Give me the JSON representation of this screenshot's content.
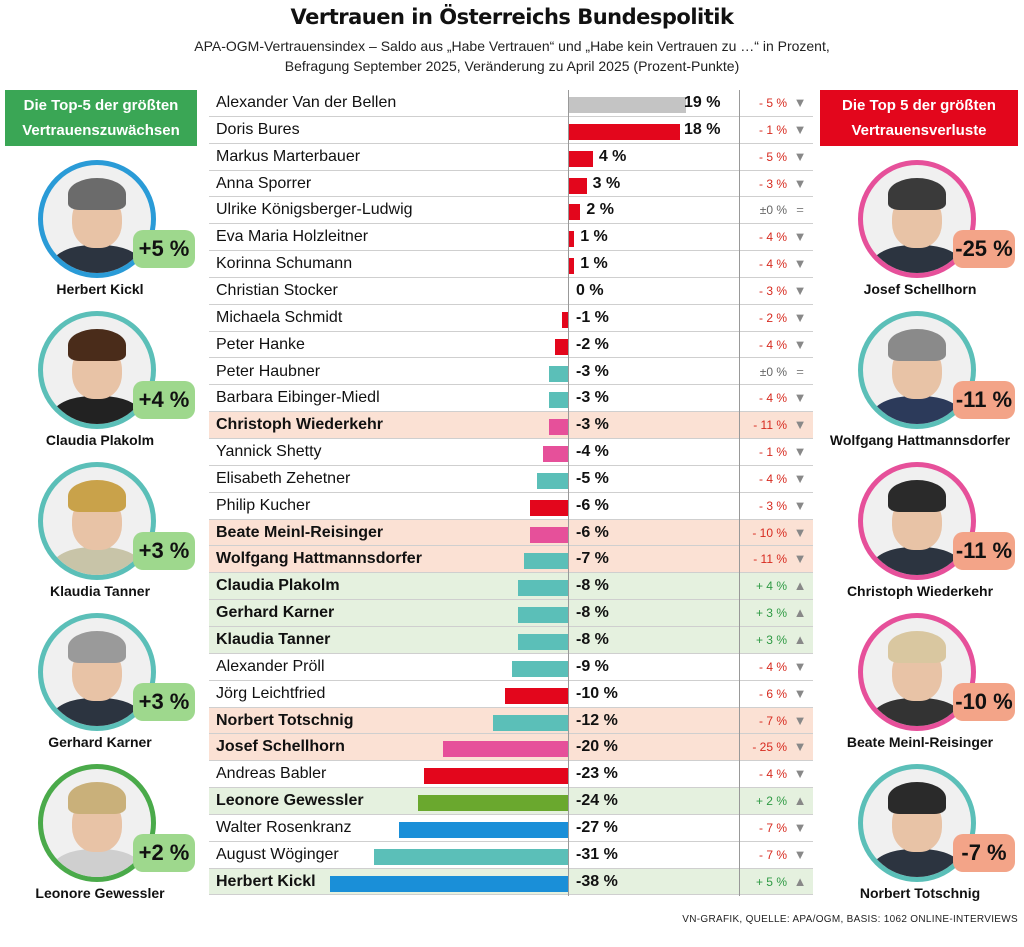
{
  "title": "Vertrauen in Österreichs Bundespolitik",
  "subtitle_line1": "APA-OGM-Vertrauensindex – Saldo aus „Habe Vertrauen“ und „Habe kein Vertrauen zu …“ in Prozent,",
  "subtitle_line2": "Befragung September 2025, Veränderung zu April 2025 (Prozent-Punkte)",
  "left_panel": {
    "heading_line1": "Die Top-5 der größten",
    "heading_line2": "Vertrauenszuwächsen",
    "people": [
      {
        "name": "Herbert Kickl",
        "badge": "+5 %",
        "ring": "#2a9bd7",
        "hair": "#6b6b6b",
        "suit": "#2c3440"
      },
      {
        "name": "Claudia Plakolm",
        "badge": "+4 %",
        "ring": "#5bbfb8",
        "hair": "#4a2c1a",
        "suit": "#222222"
      },
      {
        "name": "Klaudia Tanner",
        "badge": "+3 %",
        "ring": "#5bbfb8",
        "hair": "#c9a24a",
        "suit": "#c8c4a8"
      },
      {
        "name": "Gerhard Karner",
        "badge": "+3 %",
        "ring": "#5bbfb8",
        "hair": "#9a9a9a",
        "suit": "#2c3440"
      },
      {
        "name": "Leonore Gewessler",
        "badge": "+2 %",
        "ring": "#4aaa4a",
        "hair": "#c9b07a",
        "suit": "#cfcfcf"
      }
    ]
  },
  "right_panel": {
    "heading_line1": "Die Top 5 der größten",
    "heading_line2": "Vertrauensverluste",
    "people": [
      {
        "name": "Josef Schellhorn",
        "badge": "-25 %",
        "ring": "#e6509a",
        "hair": "#3a3a3a",
        "suit": "#2c3440"
      },
      {
        "name": "Wolfgang Hattmannsdorfer",
        "badge": "-11 %",
        "ring": "#5bbfb8",
        "hair": "#8a8a8a",
        "suit": "#2c3a5a"
      },
      {
        "name": "Christoph Wiederkehr",
        "badge": "-11 %",
        "ring": "#e6509a",
        "hair": "#2a2a2a",
        "suit": "#2c3440"
      },
      {
        "name": "Beate Meinl-Reisinger",
        "badge": "-10 %",
        "ring": "#e6509a",
        "hair": "#d9c7a0",
        "suit": "#333333"
      },
      {
        "name": "Norbert Totschnig",
        "badge": "-7 %",
        "ring": "#5bbfb8",
        "hair": "#2a2a2a",
        "suit": "#2c3440"
      }
    ]
  },
  "chart_data": {
    "type": "bar",
    "orientation": "horizontal",
    "xlim": [
      -38,
      19
    ],
    "rows": [
      {
        "name": "Alexander Van der Bellen",
        "value": 19,
        "label": "19 %",
        "change": "- 5 %",
        "dir": "down",
        "color": "#c4c4c4",
        "hl": ""
      },
      {
        "name": "Doris Bures",
        "value": 18,
        "label": "18 %",
        "change": "- 1 %",
        "dir": "down",
        "color": "#e3061c",
        "hl": ""
      },
      {
        "name": "Markus Marterbauer",
        "value": 4,
        "label": "4 %",
        "change": "- 5 %",
        "dir": "down",
        "color": "#e3061c",
        "hl": ""
      },
      {
        "name": "Anna Sporrer",
        "value": 3,
        "label": "3 %",
        "change": "- 3 %",
        "dir": "down",
        "color": "#e3061c",
        "hl": ""
      },
      {
        "name": "Ulrike Königsberger-Ludwig",
        "value": 2,
        "label": "2 %",
        "change": "±0 %",
        "dir": "neutral",
        "color": "#e3061c",
        "hl": ""
      },
      {
        "name": "Eva Maria Holzleitner",
        "value": 1,
        "label": "1 %",
        "change": "- 4 %",
        "dir": "down",
        "color": "#e3061c",
        "hl": ""
      },
      {
        "name": "Korinna Schumann",
        "value": 1,
        "label": "1 %",
        "change": "- 4 %",
        "dir": "down",
        "color": "#e3061c",
        "hl": ""
      },
      {
        "name": "Christian Stocker",
        "value": 0,
        "label": "0 %",
        "change": "- 3 %",
        "dir": "down",
        "color": "#5bbfb8",
        "hl": ""
      },
      {
        "name": "Michaela Schmidt",
        "value": -1,
        "label": "-1 %",
        "change": "- 2 %",
        "dir": "down",
        "color": "#e3061c",
        "hl": ""
      },
      {
        "name": "Peter Hanke",
        "value": -2,
        "label": "-2 %",
        "change": "- 4 %",
        "dir": "down",
        "color": "#e3061c",
        "hl": ""
      },
      {
        "name": "Peter Haubner",
        "value": -3,
        "label": "-3 %",
        "change": "±0 %",
        "dir": "neutral",
        "color": "#5bbfb8",
        "hl": ""
      },
      {
        "name": "Barbara Eibinger-Miedl",
        "value": -3,
        "label": "-3 %",
        "change": "- 4 %",
        "dir": "down",
        "color": "#5bbfb8",
        "hl": ""
      },
      {
        "name": "Christoph Wiederkehr",
        "value": -3,
        "label": "-3 %",
        "change": "- 11 %",
        "dir": "down",
        "color": "#e6509a",
        "hl": "red"
      },
      {
        "name": "Yannick Shetty",
        "value": -4,
        "label": "-4 %",
        "change": "- 1 %",
        "dir": "down",
        "color": "#e6509a",
        "hl": ""
      },
      {
        "name": "Elisabeth Zehetner",
        "value": -5,
        "label": "-5 %",
        "change": "- 4 %",
        "dir": "down",
        "color": "#5bbfb8",
        "hl": ""
      },
      {
        "name": "Philip Kucher",
        "value": -6,
        "label": "-6 %",
        "change": "- 3 %",
        "dir": "down",
        "color": "#e3061c",
        "hl": ""
      },
      {
        "name": "Beate Meinl-Reisinger",
        "value": -6,
        "label": "-6 %",
        "change": "- 10 %",
        "dir": "down",
        "color": "#e6509a",
        "hl": "red"
      },
      {
        "name": "Wolfgang Hattmannsdorfer",
        "value": -7,
        "label": "-7 %",
        "change": "- 11 %",
        "dir": "down",
        "color": "#5bbfb8",
        "hl": "red"
      },
      {
        "name": "Claudia Plakolm",
        "value": -8,
        "label": "-8 %",
        "change": "+ 4 %",
        "dir": "up",
        "color": "#5bbfb8",
        "hl": "green"
      },
      {
        "name": "Gerhard Karner",
        "value": -8,
        "label": "-8 %",
        "change": "+ 3 %",
        "dir": "up",
        "color": "#5bbfb8",
        "hl": "green"
      },
      {
        "name": "Klaudia Tanner",
        "value": -8,
        "label": "-8 %",
        "change": "+ 3 %",
        "dir": "up",
        "color": "#5bbfb8",
        "hl": "green"
      },
      {
        "name": "Alexander Pröll",
        "value": -9,
        "label": "-9 %",
        "change": "- 4 %",
        "dir": "down",
        "color": "#5bbfb8",
        "hl": ""
      },
      {
        "name": "Jörg Leichtfried",
        "value": -10,
        "label": "-10 %",
        "change": "- 6 %",
        "dir": "down",
        "color": "#e3061c",
        "hl": ""
      },
      {
        "name": "Norbert Totschnig",
        "value": -12,
        "label": "-12 %",
        "change": "- 7 %",
        "dir": "down",
        "color": "#5bbfb8",
        "hl": "red"
      },
      {
        "name": "Josef Schellhorn",
        "value": -20,
        "label": "-20 %",
        "change": "- 25 %",
        "dir": "down",
        "color": "#e6509a",
        "hl": "red"
      },
      {
        "name": "Andreas Babler",
        "value": -23,
        "label": "-23 %",
        "change": "- 4 %",
        "dir": "down",
        "color": "#e3061c",
        "hl": ""
      },
      {
        "name": "Leonore Gewessler",
        "value": -24,
        "label": "-24 %",
        "change": "+ 2 %",
        "dir": "up",
        "color": "#6aa82e",
        "hl": "green"
      },
      {
        "name": "Walter Rosenkranz",
        "value": -27,
        "label": "-27 %",
        "change": "- 7 %",
        "dir": "down",
        "color": "#1a8fd8",
        "hl": ""
      },
      {
        "name": "August Wöginger",
        "value": -31,
        "label": "-31 %",
        "change": "- 7 %",
        "dir": "down",
        "color": "#5bbfb8",
        "hl": ""
      },
      {
        "name": "Herbert Kickl",
        "value": -38,
        "label": "-38 %",
        "change": "+ 5 %",
        "dir": "up",
        "color": "#1a8fd8",
        "hl": "green"
      }
    ]
  },
  "footer": "VN-GRAFIK, QUELLE: APA/OGM, BASIS: 1062 ONLINE-INTERVIEWS"
}
